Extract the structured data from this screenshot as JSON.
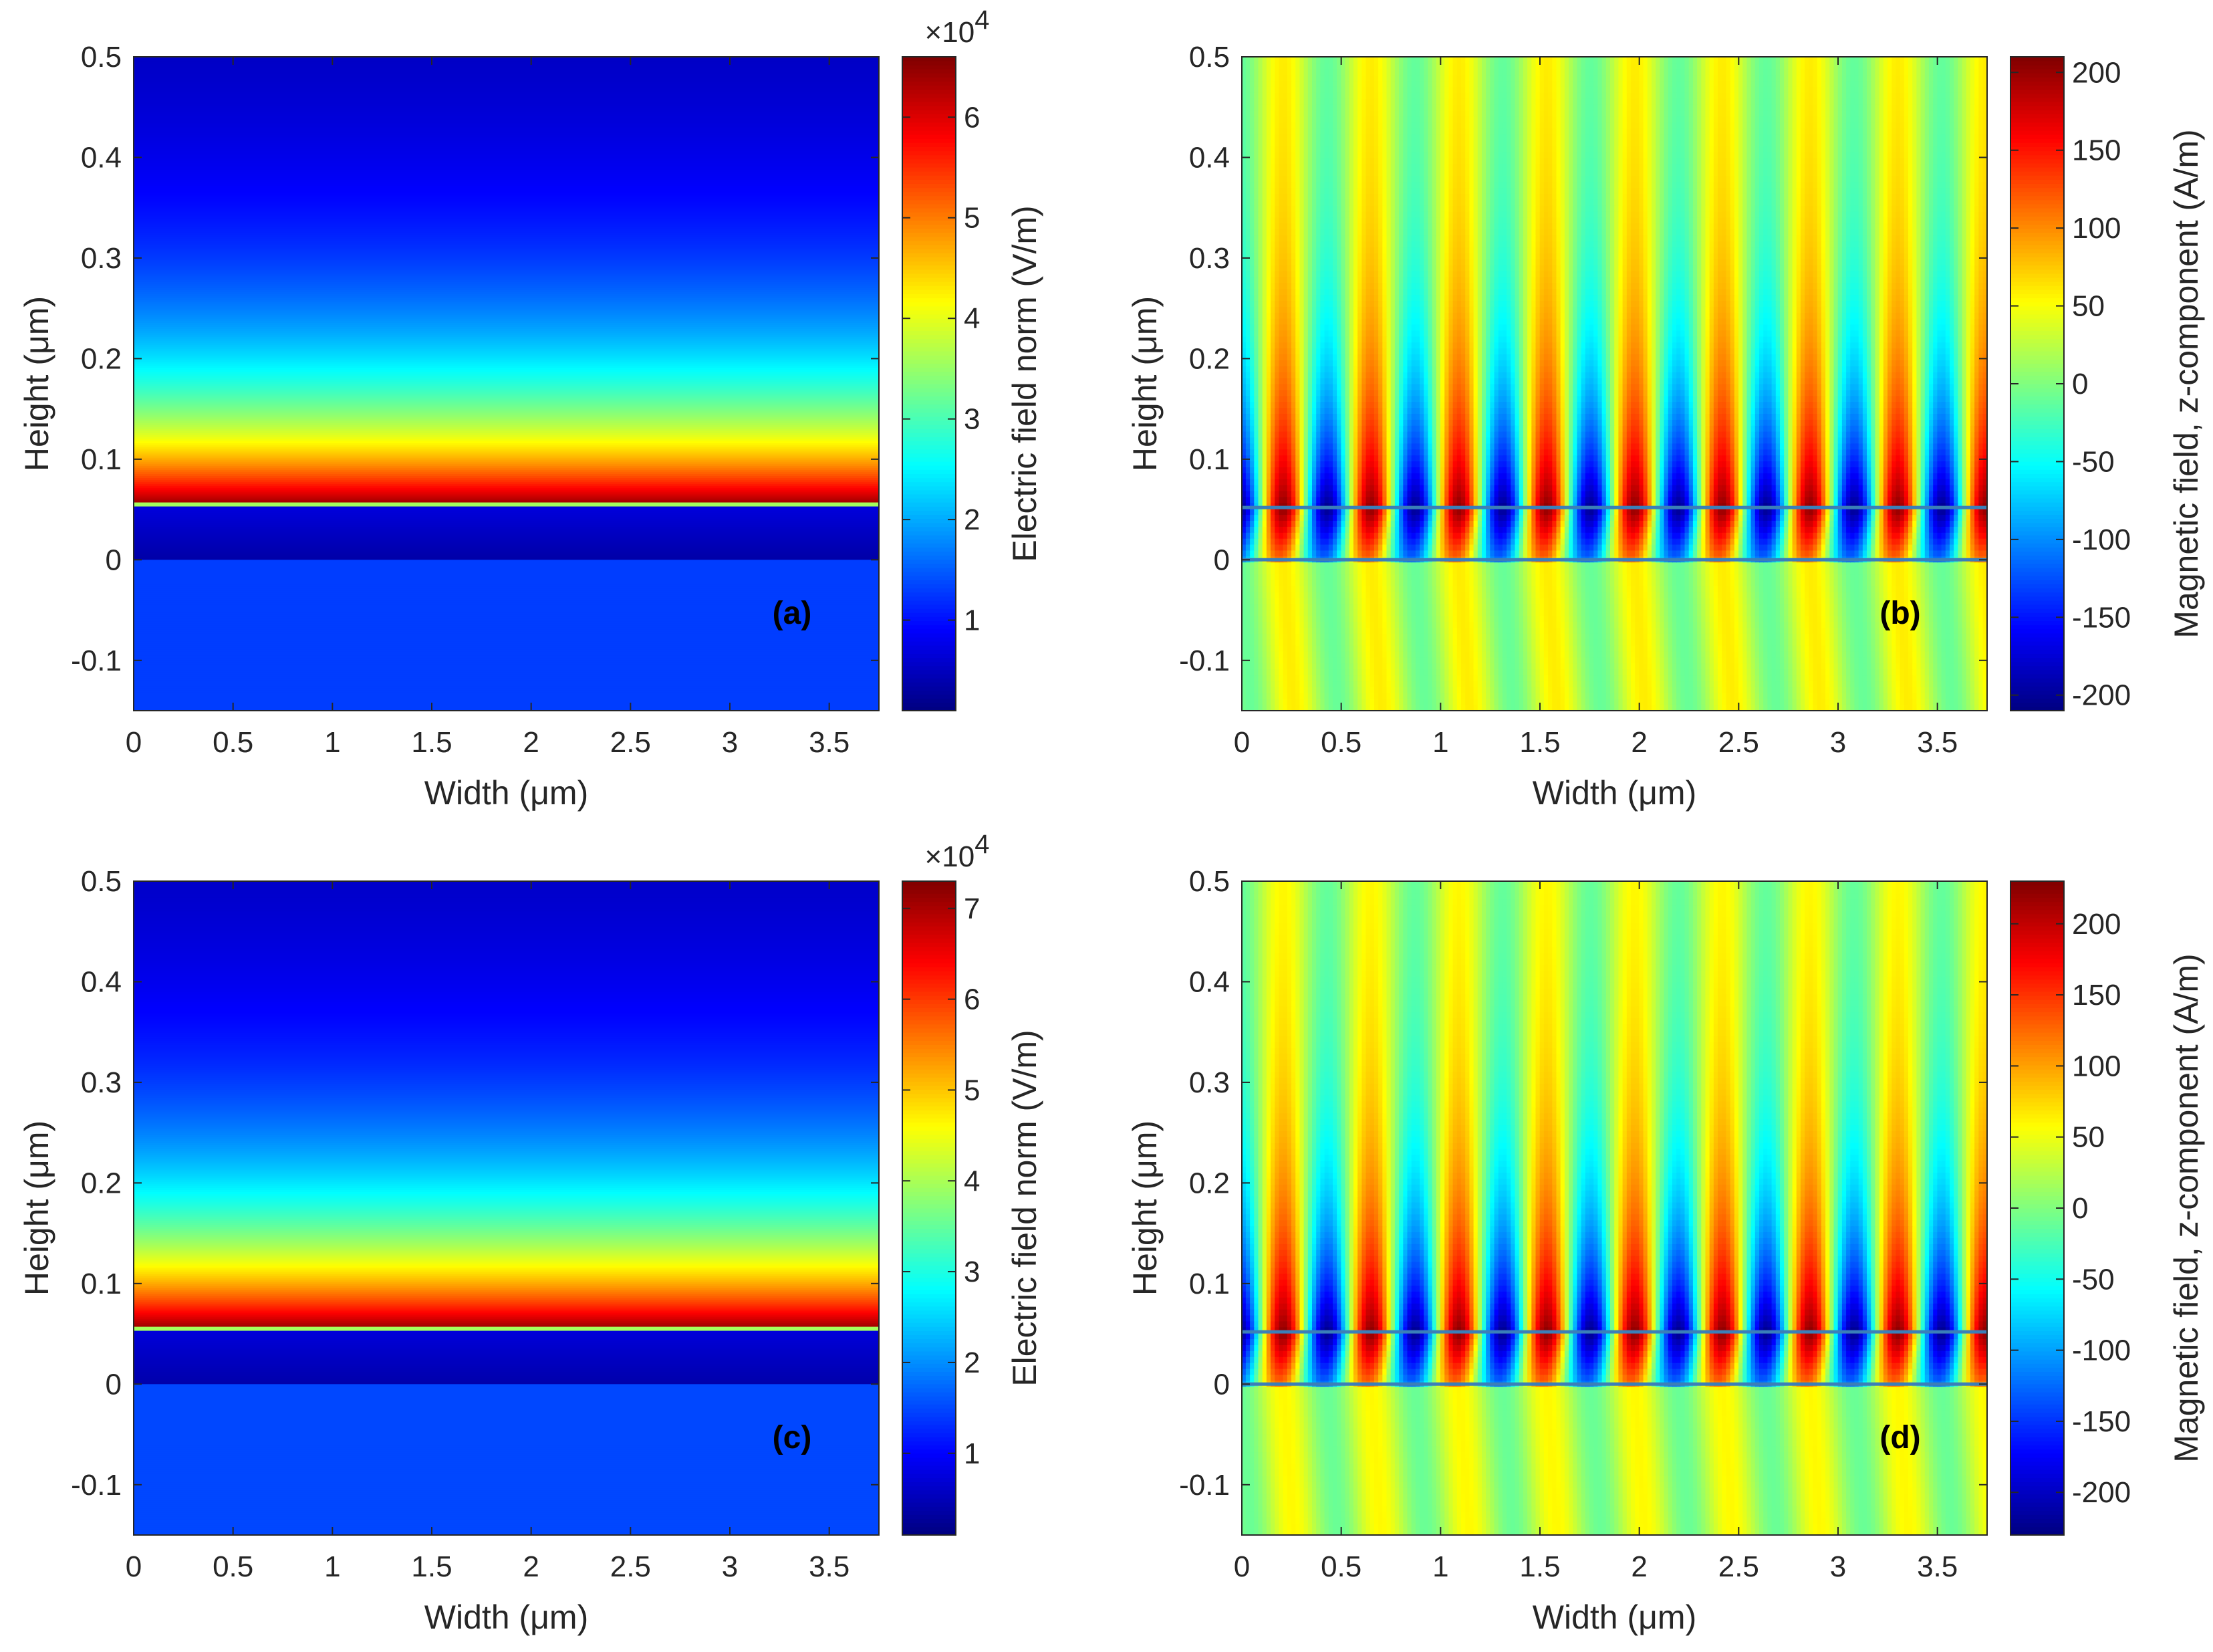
{
  "figure": {
    "common": {
      "xlabel": "Width (μm)",
      "ylabel": "Height (μm)",
      "xticks": [
        "0",
        "0.5",
        "1",
        "1.5",
        "2",
        "2.5",
        "3",
        "3.5"
      ],
      "yticks": [
        "-0.1",
        "0",
        "0.1",
        "0.2",
        "0.3",
        "0.4",
        "0.5"
      ]
    },
    "colors": {
      "jet": [
        "#00007F",
        "#0000FF",
        "#007FFF",
        "#00FFFF",
        "#7FFF7F",
        "#FFFF00",
        "#FF7F00",
        "#FF0000",
        "#7F0000"
      ],
      "interface_line": "#3B7FB8"
    }
  },
  "chart_data": [
    {
      "id": "a",
      "type": "heatmap",
      "panel_label": "(a)",
      "quantity": "electric_norm",
      "xlabel": "Width (μm)",
      "ylabel": "Height (μm)",
      "xlim": [
        0,
        3.75
      ],
      "ylim": [
        -0.15,
        0.5
      ],
      "xticks": [
        0,
        0.5,
        1,
        1.5,
        2,
        2.5,
        3,
        3.5
      ],
      "yticks": [
        -0.1,
        0,
        0.1,
        0.2,
        0.3,
        0.4,
        0.5
      ],
      "colorbar": {
        "label": "Electric field norm (V/m)",
        "multiplier": "×10",
        "exponent": "4",
        "min": 0.1,
        "max": 6.6,
        "ticks": [
          1,
          2,
          3,
          4,
          5,
          6
        ]
      },
      "profile": {
        "layer_bottom": 0,
        "layer_top": 0.055,
        "substrate_value": 1.3,
        "layer_value": 0.35,
        "peak_value": 6.5,
        "top_value": 0.35,
        "decay_length": 0.13
      }
    },
    {
      "id": "b",
      "type": "heatmap",
      "panel_label": "(b)",
      "quantity": "magnetic_z",
      "xlabel": "Width (μm)",
      "ylabel": "Height (μm)",
      "xlim": [
        0,
        3.75
      ],
      "ylim": [
        -0.15,
        0.5
      ],
      "xticks": [
        0,
        0.5,
        1,
        1.5,
        2,
        2.5,
        3,
        3.5
      ],
      "yticks": [
        -0.1,
        0,
        0.1,
        0.2,
        0.3,
        0.4,
        0.5
      ],
      "interfaces": [
        0,
        0.052
      ],
      "colorbar": {
        "label": "Magnetic field, z-component (A/m)",
        "min": -210,
        "max": 210,
        "ticks": [
          -200,
          -150,
          -100,
          -50,
          0,
          50,
          100,
          150,
          200
        ]
      },
      "wave": {
        "period": 0.4418,
        "crests": 9,
        "surface_amplitude": 205,
        "decay_length": 0.13,
        "background": 25,
        "background_modulation": 30
      }
    },
    {
      "id": "c",
      "type": "heatmap",
      "panel_label": "(c)",
      "quantity": "electric_norm",
      "xlabel": "Width (μm)",
      "ylabel": "Height (μm)",
      "xlim": [
        0,
        3.75
      ],
      "ylim": [
        -0.15,
        0.5
      ],
      "xticks": [
        0,
        0.5,
        1,
        1.5,
        2,
        2.5,
        3,
        3.5
      ],
      "yticks": [
        -0.1,
        0,
        0.1,
        0.2,
        0.3,
        0.4,
        0.5
      ],
      "colorbar": {
        "label": "Electric field norm (V/m)",
        "multiplier": "×10",
        "exponent": "4",
        "min": 0.1,
        "max": 7.3,
        "ticks": [
          1,
          2,
          3,
          4,
          5,
          6,
          7
        ]
      },
      "profile": {
        "layer_bottom": 0,
        "layer_top": 0.055,
        "substrate_value": 1.5,
        "layer_value": 0.4,
        "peak_value": 7.2,
        "top_value": 0.4,
        "decay_length": 0.13
      }
    },
    {
      "id": "d",
      "type": "heatmap",
      "panel_label": "(d)",
      "quantity": "magnetic_z",
      "xlabel": "Width (μm)",
      "ylabel": "Height (μm)",
      "xlim": [
        0,
        3.75
      ],
      "ylim": [
        -0.15,
        0.5
      ],
      "xticks": [
        0,
        0.5,
        1,
        1.5,
        2,
        2.5,
        3,
        3.5
      ],
      "yticks": [
        -0.1,
        0,
        0.1,
        0.2,
        0.3,
        0.4,
        0.5
      ],
      "interfaces": [
        0,
        0.052
      ],
      "colorbar": {
        "label": "Magnetic field, z-component (A/m)",
        "min": -230,
        "max": 230,
        "ticks": [
          -200,
          -150,
          -100,
          -50,
          0,
          50,
          100,
          150,
          200
        ]
      },
      "wave": {
        "period": 0.4418,
        "crests": 9,
        "surface_amplitude": 225,
        "decay_length": 0.13,
        "background": 25,
        "background_modulation": 30
      }
    }
  ]
}
